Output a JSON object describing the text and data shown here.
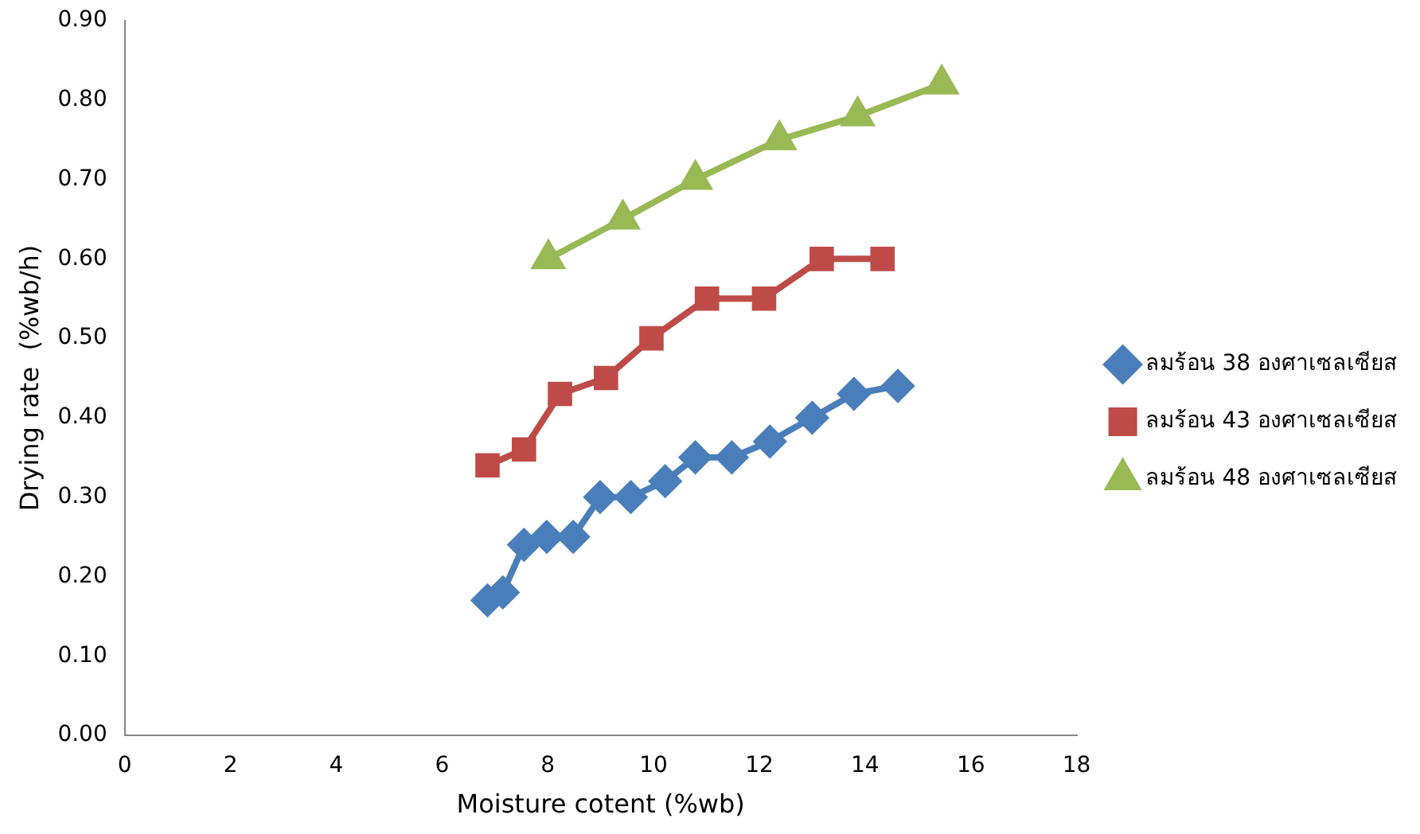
{
  "chart_data": {
    "type": "line",
    "xlabel": "Moisture cotent (%wb)",
    "ylabel": "Drying rate  (%wb/h)",
    "xlim": [
      0,
      18
    ],
    "xticks": [
      0,
      2,
      4,
      6,
      8,
      10,
      12,
      14,
      16,
      18
    ],
    "ylim": [
      0,
      0.9
    ],
    "yticks": [
      {
        "value": 0,
        "label": "0.00"
      },
      {
        "value": 0.1,
        "label": "0.10"
      },
      {
        "value": 0.2,
        "label": "0.20"
      },
      {
        "value": 0.3,
        "label": "0.30"
      },
      {
        "value": 0.4,
        "label": "0.40"
      },
      {
        "value": 0.5,
        "label": "0.50"
      },
      {
        "value": 0.6,
        "label": "0.60"
      },
      {
        "value": 0.7,
        "label": "0.70"
      },
      {
        "value": 0.8,
        "label": "0.80"
      },
      {
        "value": 0.9,
        "label": "0.90"
      }
    ],
    "grid": false,
    "legend": "right",
    "line_style": "solid",
    "series": [
      {
        "name": "ลมร้อน 38 องศาเซลเซียส",
        "color": "#4a7ebb",
        "marker": "diamond",
        "x": [
          6.86,
          7.15,
          7.55,
          7.98,
          8.48,
          8.99,
          9.57,
          10.22,
          10.79,
          11.48,
          12.2,
          13.0,
          13.79,
          14.62
        ],
        "values": [
          0.17,
          0.18,
          0.24,
          0.25,
          0.25,
          0.3,
          0.3,
          0.32,
          0.35,
          0.35,
          0.37,
          0.4,
          0.43,
          0.44
        ]
      },
      {
        "name": "ลมร้อน 43 องศาเซลเซียส",
        "color": "#be4b48",
        "marker": "square",
        "x": [
          6.86,
          7.55,
          8.23,
          9.1,
          9.96,
          11.01,
          12.09,
          13.18,
          14.33
        ],
        "values": [
          0.34,
          0.36,
          0.43,
          0.45,
          0.5,
          0.55,
          0.55,
          0.6,
          0.6
        ]
      },
      {
        "name": "ลมร้อน 48 องศาเซลเซียส",
        "color": "#98b954",
        "marker": "triangle",
        "x": [
          8.01,
          9.42,
          10.79,
          12.38,
          13.86,
          15.45
        ],
        "values": [
          0.6,
          0.65,
          0.7,
          0.75,
          0.78,
          0.82
        ]
      }
    ]
  }
}
